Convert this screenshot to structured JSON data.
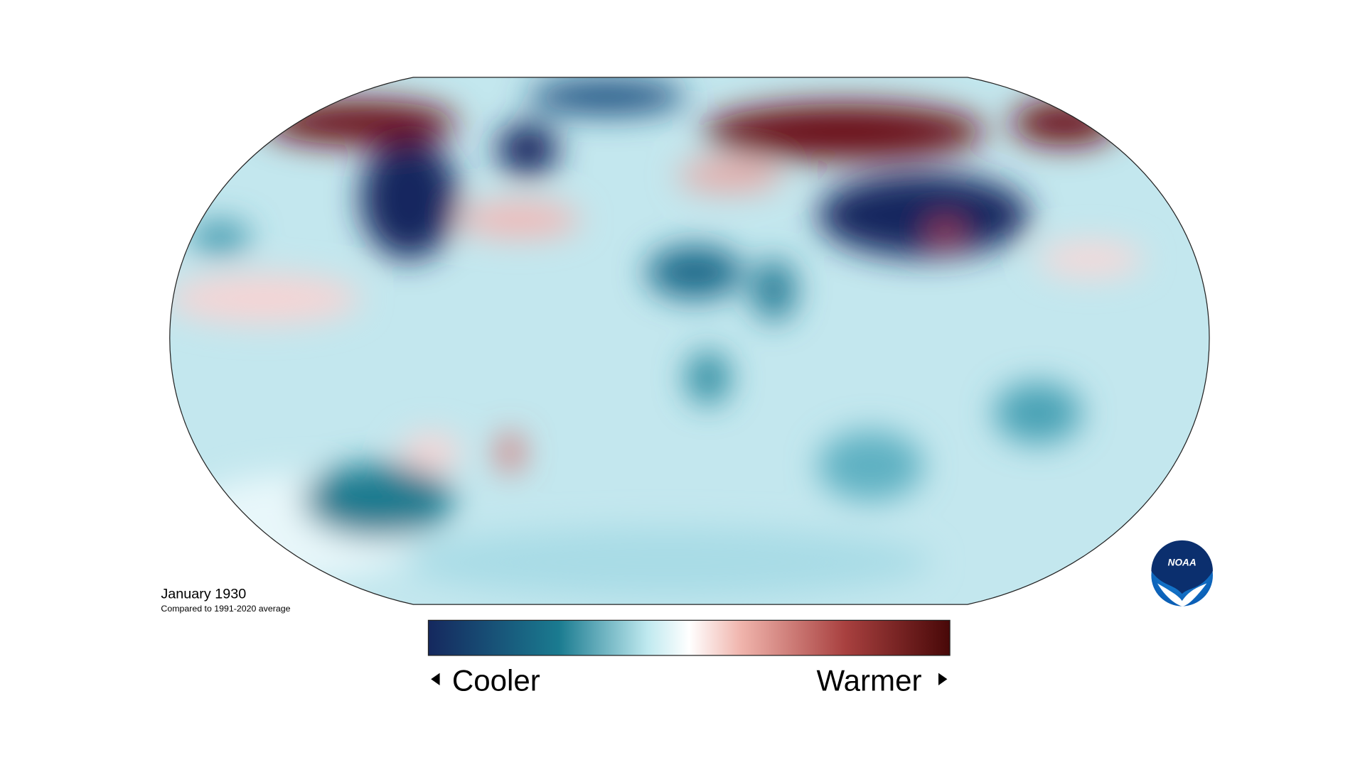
{
  "map": {
    "title": "January 1930",
    "subtitle": "Compared to 1991-2020 average"
  },
  "legend": {
    "low": "Cooler",
    "high": "Warmer"
  },
  "logo": {
    "text": "NOAA"
  }
}
